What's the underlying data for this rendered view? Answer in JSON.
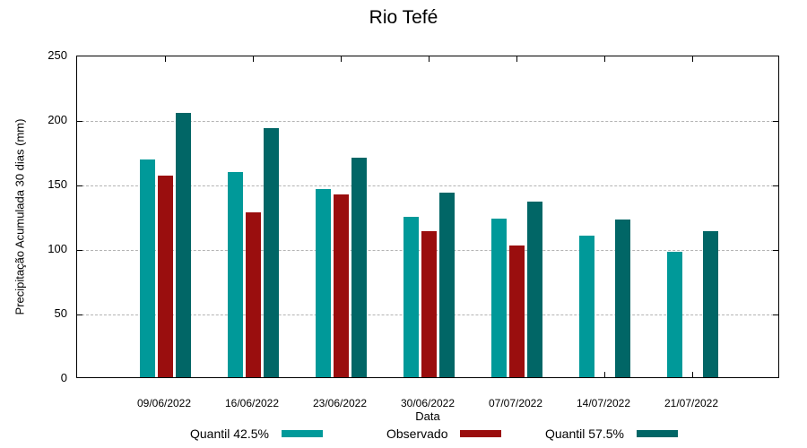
{
  "chart_data": {
    "type": "bar",
    "title": "Rio Tefé",
    "xlabel": "Data",
    "ylabel": "Precipitação Acumulada 30 dias (mm)",
    "ylim": [
      0,
      250
    ],
    "yticks": [
      0,
      50,
      100,
      150,
      200,
      250
    ],
    "grid": "horizontal dashed at 50,100,150,200",
    "legend_position": "bottom",
    "categories": [
      "09/06/2022",
      "16/06/2022",
      "23/06/2022",
      "30/06/2022",
      "07/07/2022",
      "14/07/2022",
      "21/07/2022"
    ],
    "series": [
      {
        "name": "Quantil 42.5%",
        "color": "#009999",
        "values": [
          169,
          159,
          146,
          124,
          123,
          110,
          97
        ]
      },
      {
        "name": "Observado",
        "color": "#9a0e0e",
        "values": [
          156,
          128,
          142,
          113,
          102,
          null,
          null
        ]
      },
      {
        "name": "Quantil 57.5%",
        "color": "#016666",
        "values": [
          205,
          193,
          170,
          143,
          136,
          122,
          113
        ]
      }
    ]
  }
}
